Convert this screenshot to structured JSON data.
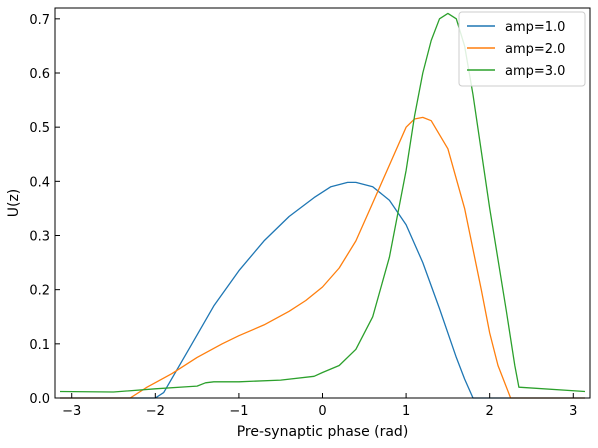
{
  "chart_data": {
    "type": "line",
    "xlabel": "Pre-synaptic phase (rad)",
    "ylabel": "U(z)",
    "xlim": [
      -3.2,
      3.2
    ],
    "ylim": [
      0.0,
      0.72
    ],
    "xticks": [
      -3,
      -2,
      -1,
      0,
      1,
      2,
      3
    ],
    "yticks": [
      0.0,
      0.1,
      0.2,
      0.3,
      0.4,
      0.5,
      0.6,
      0.7
    ],
    "grid": false,
    "legend_position": "top-right",
    "series": [
      {
        "name": "amp=1.0",
        "color": "#1f77b4",
        "x": [
          -3.14,
          -2.0,
          -1.9,
          -1.6,
          -1.3,
          -1.0,
          -0.7,
          -0.4,
          -0.1,
          0.1,
          0.3,
          0.4,
          0.6,
          0.8,
          1.0,
          1.2,
          1.4,
          1.6,
          1.7,
          1.8,
          2.0,
          3.14
        ],
        "y": [
          0.0,
          0.0,
          0.01,
          0.09,
          0.17,
          0.235,
          0.29,
          0.335,
          0.37,
          0.39,
          0.398,
          0.398,
          0.39,
          0.365,
          0.32,
          0.25,
          0.165,
          0.075,
          0.035,
          0.0,
          0.0,
          0.0
        ]
      },
      {
        "name": "amp=2.0",
        "color": "#ff7f0e",
        "x": [
          -3.14,
          -2.3,
          -2.1,
          -1.8,
          -1.5,
          -1.2,
          -1.0,
          -0.7,
          -0.4,
          -0.2,
          0.0,
          0.2,
          0.4,
          0.6,
          0.8,
          1.0,
          1.1,
          1.2,
          1.3,
          1.5,
          1.7,
          1.9,
          2.0,
          2.1,
          2.25,
          3.14
        ],
        "y": [
          0.0,
          0.0,
          0.02,
          0.045,
          0.075,
          0.1,
          0.115,
          0.135,
          0.16,
          0.18,
          0.205,
          0.24,
          0.29,
          0.36,
          0.43,
          0.5,
          0.515,
          0.518,
          0.512,
          0.46,
          0.35,
          0.2,
          0.12,
          0.06,
          0.0,
          0.0
        ]
      },
      {
        "name": "amp=3.0",
        "color": "#2ca02c",
        "x": [
          -3.14,
          -2.5,
          -2.0,
          -1.6,
          -1.5,
          -1.4,
          -1.3,
          -1.0,
          -0.5,
          -0.1,
          0.0,
          0.2,
          0.4,
          0.6,
          0.8,
          1.0,
          1.1,
          1.2,
          1.3,
          1.4,
          1.5,
          1.6,
          1.7,
          1.8,
          2.0,
          2.2,
          2.3,
          2.35,
          3.14
        ],
        "y": [
          0.012,
          0.011,
          0.017,
          0.021,
          0.022,
          0.028,
          0.03,
          0.03,
          0.033,
          0.04,
          0.047,
          0.06,
          0.09,
          0.15,
          0.26,
          0.42,
          0.52,
          0.6,
          0.66,
          0.7,
          0.71,
          0.7,
          0.65,
          0.56,
          0.35,
          0.16,
          0.06,
          0.02,
          0.012
        ]
      }
    ]
  }
}
